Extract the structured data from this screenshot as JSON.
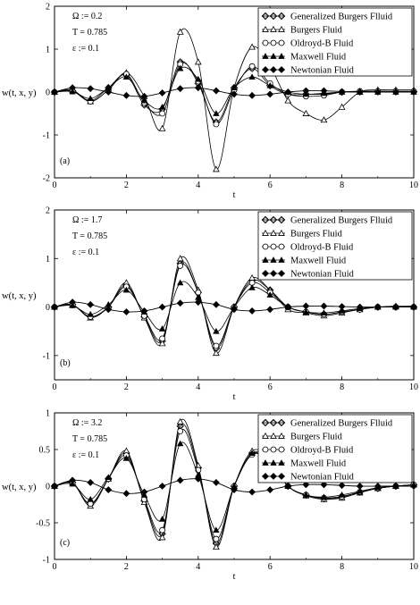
{
  "figure": {
    "ylabel": "w(t, x, y)",
    "xlabel": "t"
  },
  "legend_entries": [
    {
      "name": "Generalized Burgers Flluid",
      "marker": "diamond-circle-open"
    },
    {
      "name": "Burgers Fluid",
      "marker": "triangle-open"
    },
    {
      "name": "Oldroyd-B Fluid",
      "marker": "circle-open"
    },
    {
      "name": "Maxwell Fluid",
      "marker": "triangle-filled"
    },
    {
      "name": "Newtonian Fluid",
      "marker": "diamond-filled"
    }
  ],
  "chart_data": [
    {
      "type": "line",
      "panel_label": "(a)",
      "params": [
        "Ω := 0.2",
        "T = 0.785",
        "ε := 0.1"
      ],
      "xlabel": "t",
      "ylabel": "w(t, x, y)",
      "xlim": [
        0,
        10
      ],
      "ylim": [
        -2,
        2
      ],
      "x_ticks": [
        0,
        2,
        4,
        6,
        8,
        10
      ],
      "y_ticks": [
        -2,
        -1,
        0,
        1,
        2
      ],
      "grid": false,
      "legend_position": "top-right",
      "x": [
        0,
        0.5,
        1,
        1.5,
        2,
        2.5,
        3,
        3.5,
        4,
        4.5,
        5,
        5.5,
        6,
        6.5,
        7,
        7.5,
        8,
        8.5,
        9,
        9.5,
        10
      ],
      "series": [
        {
          "name": "Generalized Burgers Flluid",
          "values": [
            0,
            0.03,
            -0.2,
            0.1,
            0.4,
            -0.3,
            -0.4,
            0.7,
            0.2,
            -0.7,
            0.1,
            0.55,
            0.15,
            -0.05,
            -0.05,
            -0.05,
            0,
            0.01,
            0.01,
            0.01,
            0.01
          ]
        },
        {
          "name": "Burgers Fluid",
          "values": [
            0,
            0.05,
            -0.22,
            0.05,
            0.45,
            -0.1,
            -0.85,
            1.4,
            0.7,
            -1.8,
            0.1,
            1.05,
            0.6,
            -0.2,
            -0.5,
            -0.65,
            -0.35,
            0,
            0.05,
            0.05,
            0.05
          ]
        },
        {
          "name": "Oldroyd-B Fluid",
          "values": [
            0,
            0.02,
            -0.22,
            0.05,
            0.42,
            -0.25,
            -0.5,
            0.65,
            0.25,
            -0.75,
            0.05,
            0.6,
            0.2,
            -0.05,
            -0.1,
            -0.08,
            0,
            0.02,
            0.02,
            0.02,
            0.02
          ]
        },
        {
          "name": "Maxwell Fluid",
          "values": [
            0,
            0.01,
            -0.15,
            0.1,
            0.35,
            -0.2,
            -0.35,
            0.55,
            0.3,
            -0.5,
            0.1,
            0.35,
            0.15,
            0,
            -0.05,
            -0.03,
            0,
            0,
            0,
            0,
            0
          ]
        },
        {
          "name": "Newtonian Fluid",
          "values": [
            0,
            0.1,
            0.08,
            0,
            -0.08,
            -0.1,
            -0.02,
            0.08,
            0.1,
            0.03,
            -0.05,
            -0.08,
            -0.05,
            0,
            0.03,
            0.03,
            0.01,
            0,
            0,
            0,
            0
          ]
        }
      ]
    },
    {
      "type": "line",
      "panel_label": "(b)",
      "params": [
        "Ω := 1.7",
        "T = 0.785",
        "ε := 0.1"
      ],
      "xlabel": "t",
      "ylabel": "w(t, x, y)",
      "xlim": [
        0,
        10
      ],
      "ylim": [
        -1.5,
        2
      ],
      "x_ticks": [
        0,
        2,
        4,
        6,
        8,
        10
      ],
      "y_ticks": [
        -1,
        0,
        1,
        2
      ],
      "grid": false,
      "legend_position": "top-right",
      "x": [
        0,
        0.5,
        1,
        1.5,
        2,
        2.5,
        3,
        3.5,
        4,
        4.5,
        5,
        5.5,
        6,
        6.5,
        7,
        7.5,
        8,
        8.5,
        9,
        9.5,
        10
      ],
      "series": [
        {
          "name": "Generalized Burgers Flluid",
          "values": [
            0,
            0.05,
            -0.2,
            0,
            0.45,
            -0.2,
            -0.7,
            0.9,
            0.3,
            -0.85,
            0,
            0.55,
            0.35,
            0,
            -0.1,
            -0.15,
            -0.1,
            -0.05,
            0,
            0,
            0
          ]
        },
        {
          "name": "Burgers Fluid",
          "values": [
            0,
            0.05,
            -0.22,
            0,
            0.5,
            -0.22,
            -0.75,
            1.0,
            0.35,
            -0.95,
            0,
            0.6,
            0.35,
            -0.05,
            -0.12,
            -0.18,
            -0.12,
            -0.05,
            0,
            0.02,
            0.02
          ]
        },
        {
          "name": "Oldroyd-B Fluid",
          "values": [
            0,
            0.04,
            -0.2,
            0,
            0.42,
            -0.18,
            -0.65,
            0.85,
            0.3,
            -0.8,
            0,
            0.5,
            0.3,
            0,
            -0.1,
            -0.15,
            -0.1,
            -0.05,
            0,
            0,
            0
          ]
        },
        {
          "name": "Maxwell Fluid",
          "values": [
            0,
            0.03,
            -0.15,
            0.05,
            0.35,
            -0.1,
            -0.45,
            0.5,
            0.2,
            -0.5,
            0,
            0.4,
            0.25,
            0,
            -0.1,
            -0.12,
            -0.08,
            -0.03,
            0,
            0,
            0
          ]
        },
        {
          "name": "Newtonian Fluid",
          "values": [
            0,
            0.1,
            0.05,
            -0.05,
            -0.1,
            -0.08,
            0,
            0.08,
            0.1,
            0.05,
            -0.05,
            -0.08,
            -0.05,
            0,
            0.02,
            0.02,
            0.01,
            0,
            0,
            0,
            0
          ]
        }
      ]
    },
    {
      "type": "line",
      "panel_label": "(c)",
      "params": [
        "Ω := 3.2",
        "T = 0.785",
        "ε := 0.1"
      ],
      "xlabel": "t",
      "ylabel": "w(t, x, y)",
      "xlim": [
        0,
        10
      ],
      "ylim": [
        -1,
        1
      ],
      "x_ticks": [
        0,
        2,
        4,
        6,
        8,
        10
      ],
      "y_ticks": [
        -1,
        -0.5,
        0,
        0.5,
        1
      ],
      "grid": false,
      "legend_position": "top-right",
      "x": [
        0,
        0.5,
        1,
        1.5,
        2,
        2.5,
        3,
        3.5,
        4,
        4.5,
        5,
        5.5,
        6,
        6.5,
        7,
        7.5,
        8,
        8.5,
        9,
        9.5,
        10
      ],
      "series": [
        {
          "name": "Generalized Burgers Flluid",
          "values": [
            0,
            0.05,
            -0.25,
            0.1,
            0.45,
            -0.2,
            -0.65,
            0.82,
            0.25,
            -0.78,
            0,
            0.45,
            0.35,
            0,
            -0.12,
            -0.17,
            -0.15,
            -0.08,
            -0.03,
            0,
            0.02
          ]
        },
        {
          "name": "Burgers Fluid",
          "values": [
            0,
            0.05,
            -0.27,
            0.1,
            0.48,
            -0.22,
            -0.7,
            0.88,
            0.28,
            -0.83,
            0,
            0.48,
            0.37,
            0,
            -0.13,
            -0.18,
            -0.16,
            -0.09,
            -0.03,
            0,
            0.02
          ]
        },
        {
          "name": "Oldroyd-B Fluid",
          "values": [
            0,
            0.04,
            -0.24,
            0.1,
            0.42,
            -0.18,
            -0.6,
            0.75,
            0.22,
            -0.72,
            0,
            0.43,
            0.33,
            0,
            -0.12,
            -0.16,
            -0.14,
            -0.08,
            -0.03,
            0,
            0.02
          ]
        },
        {
          "name": "Maxwell Fluid",
          "values": [
            0,
            0.03,
            -0.18,
            0.12,
            0.38,
            -0.12,
            -0.45,
            0.58,
            0.15,
            -0.6,
            0,
            0.45,
            0.3,
            0,
            -0.12,
            -0.15,
            -0.12,
            -0.07,
            -0.02,
            0,
            0.02
          ]
        },
        {
          "name": "Newtonian Fluid",
          "values": [
            0,
            0.08,
            0.05,
            -0.05,
            -0.1,
            -0.08,
            0,
            0.08,
            0.1,
            0.05,
            -0.05,
            -0.08,
            -0.05,
            0,
            0.02,
            0.02,
            0.01,
            0,
            0,
            0,
            0
          ]
        }
      ]
    }
  ]
}
